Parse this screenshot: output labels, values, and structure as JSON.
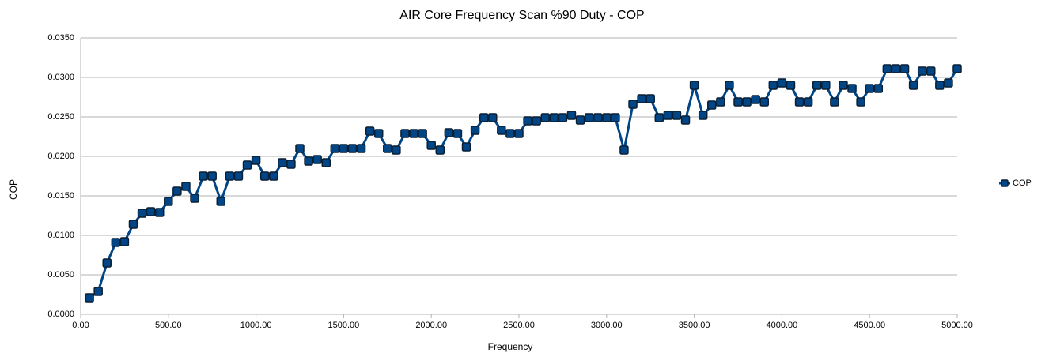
{
  "chart_data": {
    "type": "line",
    "title": "AIR Core Frequency Scan %90 Duty - COP",
    "xlabel": "Frequency",
    "ylabel": "COP",
    "x": [
      50,
      100,
      150,
      200,
      250,
      300,
      350,
      400,
      450,
      500,
      550,
      600,
      650,
      700,
      750,
      800,
      850,
      900,
      950,
      1000,
      1050,
      1100,
      1150,
      1200,
      1250,
      1300,
      1350,
      1400,
      1450,
      1500,
      1550,
      1600,
      1650,
      1700,
      1750,
      1800,
      1850,
      1900,
      1950,
      2000,
      2050,
      2100,
      2150,
      2200,
      2250,
      2300,
      2350,
      2400,
      2450,
      2500,
      2550,
      2600,
      2650,
      2700,
      2750,
      2800,
      2850,
      2900,
      2950,
      3000,
      3050,
      3100,
      3150,
      3200,
      3250,
      3300,
      3350,
      3400,
      3450,
      3500,
      3550,
      3600,
      3650,
      3700,
      3750,
      3800,
      3850,
      3900,
      3950,
      4000,
      4050,
      4100,
      4150,
      4200,
      4250,
      4300,
      4350,
      4400,
      4450,
      4500,
      4550,
      4600,
      4650,
      4700,
      4750,
      4800,
      4850,
      4900,
      4950,
      5000
    ],
    "series": [
      {
        "name": "COP",
        "color": "#004586",
        "values": [
          0.0021,
          0.0029,
          0.0065,
          0.0091,
          0.0092,
          0.0114,
          0.0128,
          0.013,
          0.0129,
          0.0143,
          0.0156,
          0.0162,
          0.0147,
          0.0175,
          0.0175,
          0.0143,
          0.0175,
          0.0175,
          0.0189,
          0.0195,
          0.0175,
          0.0175,
          0.0192,
          0.019,
          0.021,
          0.0194,
          0.0196,
          0.0192,
          0.021,
          0.021,
          0.021,
          0.021,
          0.0232,
          0.0229,
          0.021,
          0.0208,
          0.0229,
          0.0229,
          0.0229,
          0.0214,
          0.0208,
          0.023,
          0.0229,
          0.0212,
          0.0233,
          0.0249,
          0.0249,
          0.0233,
          0.0229,
          0.0229,
          0.0245,
          0.0245,
          0.0249,
          0.0249,
          0.0249,
          0.0252,
          0.0246,
          0.0249,
          0.0249,
          0.0249,
          0.0249,
          0.0208,
          0.0266,
          0.0273,
          0.0273,
          0.0249,
          0.0252,
          0.0252,
          0.0246,
          0.029,
          0.0252,
          0.0265,
          0.0269,
          0.029,
          0.0269,
          0.0269,
          0.0272,
          0.0269,
          0.029,
          0.0293,
          0.029,
          0.0269,
          0.0269,
          0.029,
          0.029,
          0.0269,
          0.029,
          0.0286,
          0.0269,
          0.0286,
          0.0286,
          0.0311,
          0.0311,
          0.0311,
          0.029,
          0.0308,
          0.0308,
          0.029,
          0.0293,
          0.0311
        ]
      }
    ],
    "xlim": [
      0,
      5000
    ],
    "ylim": [
      0,
      0.035
    ],
    "xticks": [
      {
        "value": 0,
        "label": "0.00"
      },
      {
        "value": 500,
        "label": "500.00"
      },
      {
        "value": 1000,
        "label": "1000.00"
      },
      {
        "value": 1500,
        "label": "1500.00"
      },
      {
        "value": 2000,
        "label": "2000.00"
      },
      {
        "value": 2500,
        "label": "2500.00"
      },
      {
        "value": 3000,
        "label": "3000.00"
      },
      {
        "value": 3500,
        "label": "3500.00"
      },
      {
        "value": 4000,
        "label": "4000.00"
      },
      {
        "value": 4500,
        "label": "4500.00"
      },
      {
        "value": 5000,
        "label": "5000.00"
      }
    ],
    "yticks": [
      {
        "value": 0,
        "label": "0.0000"
      },
      {
        "value": 0.005,
        "label": "0.0050"
      },
      {
        "value": 0.01,
        "label": "0.0100"
      },
      {
        "value": 0.015,
        "label": "0.0150"
      },
      {
        "value": 0.02,
        "label": "0.0200"
      },
      {
        "value": 0.025,
        "label": "0.0250"
      },
      {
        "value": 0.03,
        "label": "0.0300"
      },
      {
        "value": 0.035,
        "label": "0.0350"
      }
    ],
    "grid": true,
    "legend": "right"
  }
}
